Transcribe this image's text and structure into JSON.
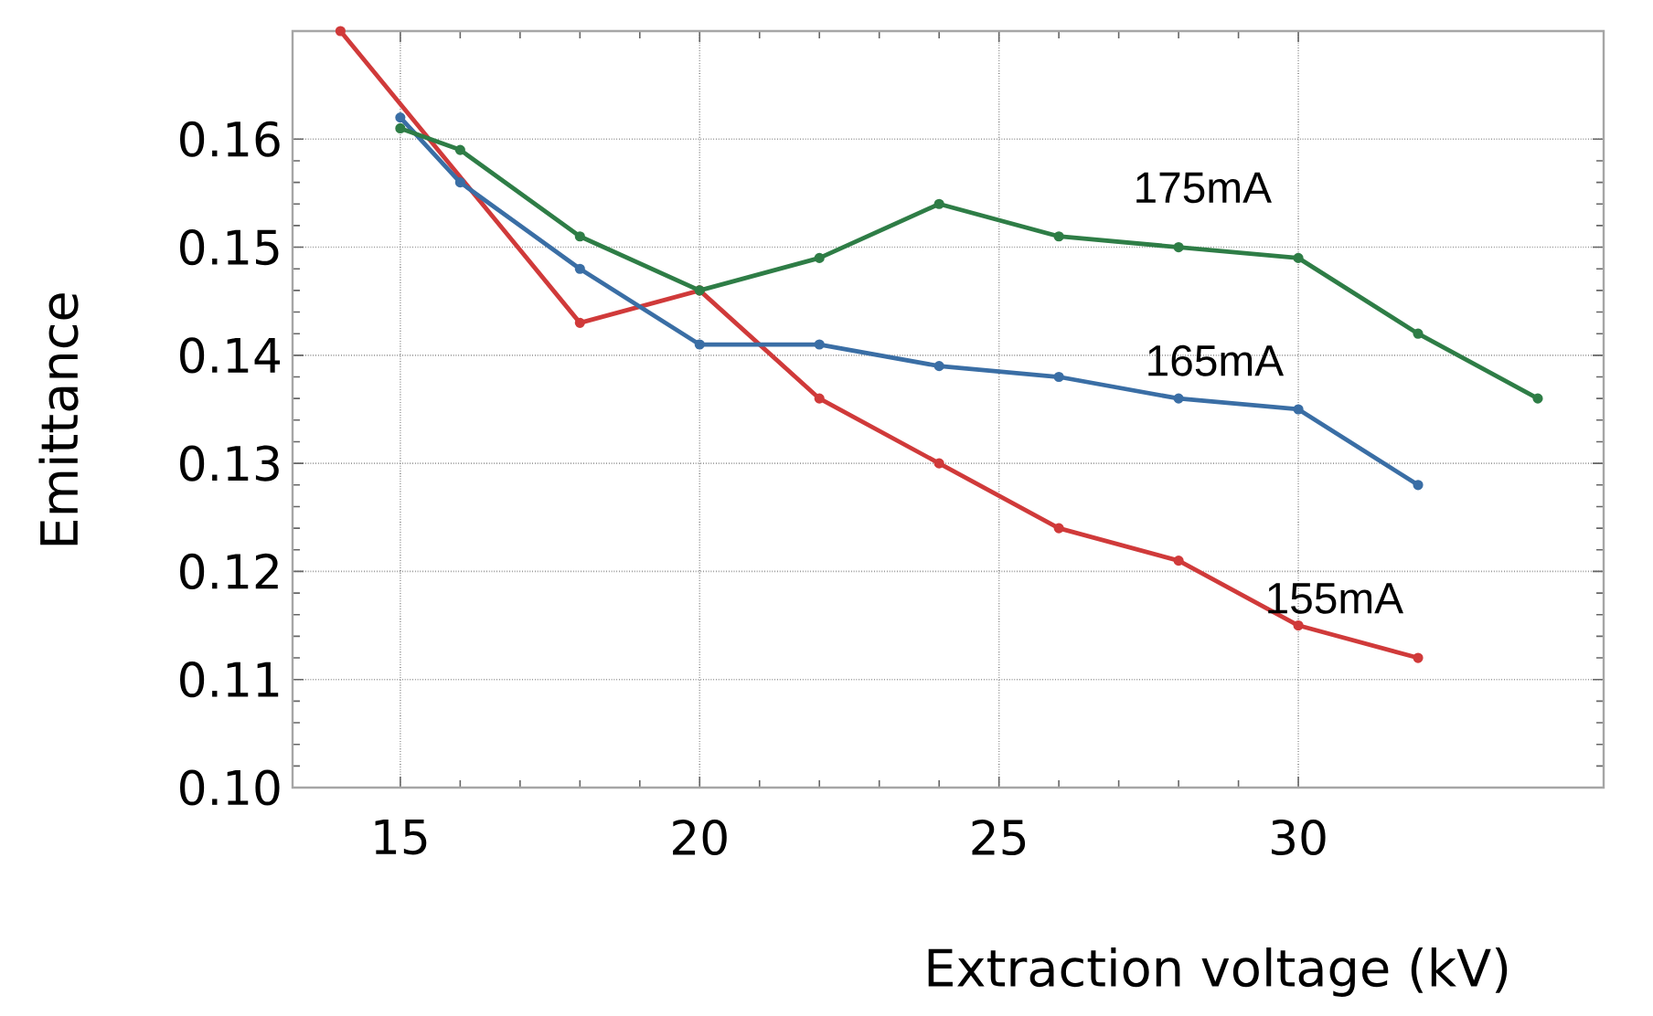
{
  "chart_data": {
    "type": "line",
    "xlabel": "Extraction voltage (kV)",
    "ylabel": "Emittance",
    "xlim": [
      13.2,
      35.1
    ],
    "ylim": [
      0.1,
      0.17
    ],
    "xticks": [
      15,
      20,
      25,
      30
    ],
    "yticks": [
      {
        "value": 0.1,
        "label": "0.10"
      },
      0.11,
      0.12,
      0.13,
      0.14,
      0.15,
      0.16
    ],
    "grid": true,
    "marker": "circle",
    "line_style": "solid",
    "series": [
      {
        "name": "175mA",
        "color": "#2e7d46",
        "x": [
          15,
          16,
          18,
          20,
          22,
          24,
          26,
          28,
          30,
          32,
          34
        ],
        "values": [
          0.161,
          0.159,
          0.151,
          0.146,
          0.149,
          0.154,
          0.151,
          0.15,
          0.149,
          0.142,
          0.136
        ]
      },
      {
        "name": "165mA",
        "color": "#3a6ea5",
        "x": [
          15,
          16,
          18,
          20,
          22,
          24,
          26,
          28,
          30,
          32
        ],
        "values": [
          0.162,
          0.156,
          0.148,
          0.141,
          0.141,
          0.139,
          0.138,
          0.136,
          0.135,
          0.128
        ]
      },
      {
        "name": "155mA",
        "color": "#d03a3a",
        "x": [
          14,
          18,
          20,
          22,
          24,
          26,
          28,
          30,
          32
        ],
        "values": [
          0.17,
          0.143,
          0.146,
          0.136,
          0.13,
          0.124,
          0.121,
          0.115,
          0.112
        ]
      }
    ]
  }
}
